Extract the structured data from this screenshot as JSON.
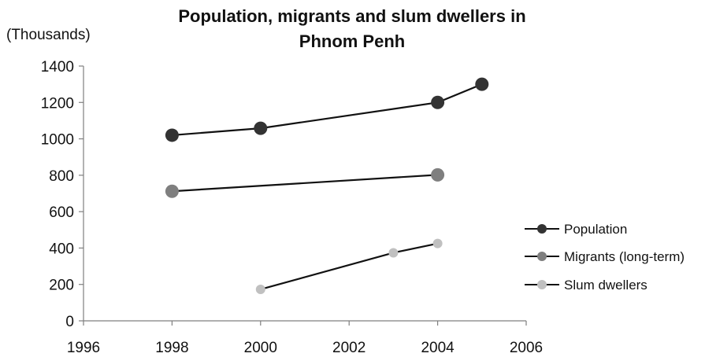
{
  "chart_data": {
    "type": "line",
    "title_lines": [
      "Population, migrants and slum dwellers in",
      "Phnom Penh"
    ],
    "unit_label": "(Thousands)",
    "xlim": [
      1996,
      2006
    ],
    "x_ticks": [
      1996,
      1998,
      2000,
      2002,
      2004,
      2006
    ],
    "ylim": [
      0,
      1400
    ],
    "y_ticks": [
      0,
      200,
      400,
      600,
      800,
      1000,
      1200,
      1400
    ],
    "grid": false,
    "legend_position": "right",
    "series": [
      {
        "name": "Population",
        "color": "#333333",
        "marker": "large",
        "points": [
          {
            "x": 1998,
            "y": 1020
          },
          {
            "x": 2000,
            "y": 1058
          },
          {
            "x": 2004,
            "y": 1200
          },
          {
            "x": 2005,
            "y": 1300
          }
        ]
      },
      {
        "name": "Migrants (long-term)",
        "color": "#7f7f7f",
        "marker": "large",
        "points": [
          {
            "x": 1998,
            "y": 712
          },
          {
            "x": 2004,
            "y": 802
          }
        ]
      },
      {
        "name": "Slum dwellers",
        "color": "#c0c0c0",
        "marker": "small",
        "points": [
          {
            "x": 2000,
            "y": 173
          },
          {
            "x": 2003,
            "y": 374
          },
          {
            "x": 2004,
            "y": 425
          }
        ]
      }
    ]
  }
}
